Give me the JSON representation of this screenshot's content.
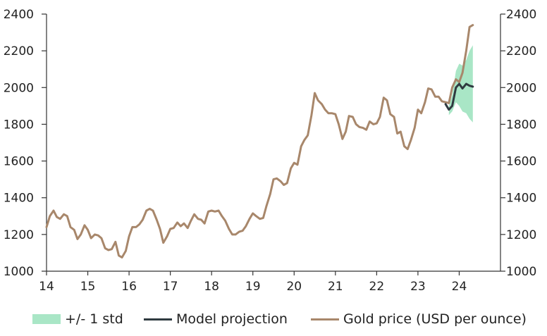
{
  "chart_data": {
    "type": "line",
    "title": "",
    "xlabel": "",
    "ylabel": "",
    "xlim": [
      14,
      25.0
    ],
    "ylim": [
      1000,
      2400
    ],
    "x_ticks": [
      14,
      15,
      16,
      17,
      18,
      19,
      20,
      21,
      22,
      23,
      24
    ],
    "x_tick_labels": [
      "14",
      "15",
      "16",
      "17",
      "18",
      "19",
      "20",
      "21",
      "22",
      "23",
      "24"
    ],
    "y_ticks": [
      1000,
      1200,
      1400,
      1600,
      1800,
      2000,
      2200,
      2400
    ],
    "y_tick_labels": [
      "1000",
      "1200",
      "1400",
      "1600",
      "1800",
      "2000",
      "2200",
      "2400"
    ],
    "secondary_y_tick_labels": [
      "1000",
      "1200",
      "1400",
      "1600",
      "1800",
      "2000",
      "2200",
      "2400"
    ],
    "colors": {
      "gold": "#a8876b",
      "model": "#2f3a40",
      "band": "#a9e6c6",
      "axis": "#333333"
    },
    "series": [
      {
        "name": "Gold price (USD per ounce)",
        "x": [
          14.0,
          14.08,
          14.17,
          14.25,
          14.33,
          14.42,
          14.5,
          14.58,
          14.67,
          14.75,
          14.83,
          14.92,
          15.0,
          15.08,
          15.17,
          15.25,
          15.33,
          15.42,
          15.5,
          15.58,
          15.67,
          15.75,
          15.83,
          15.92,
          16.0,
          16.08,
          16.17,
          16.25,
          16.33,
          16.42,
          16.5,
          16.58,
          16.67,
          16.75,
          16.83,
          16.92,
          17.0,
          17.08,
          17.17,
          17.25,
          17.33,
          17.42,
          17.5,
          17.58,
          17.67,
          17.75,
          17.83,
          17.92,
          18.0,
          18.08,
          18.17,
          18.25,
          18.33,
          18.42,
          18.5,
          18.58,
          18.67,
          18.75,
          18.83,
          18.92,
          19.0,
          19.08,
          19.17,
          19.25,
          19.33,
          19.42,
          19.5,
          19.58,
          19.67,
          19.75,
          19.83,
          19.92,
          20.0,
          20.08,
          20.17,
          20.25,
          20.33,
          20.42,
          20.5,
          20.58,
          20.67,
          20.75,
          20.83,
          20.92,
          21.0,
          21.08,
          21.17,
          21.25,
          21.33,
          21.42,
          21.5,
          21.58,
          21.67,
          21.75,
          21.83,
          21.92,
          22.0,
          22.08,
          22.17,
          22.25,
          22.33,
          22.42,
          22.5,
          22.58,
          22.67,
          22.75,
          22.83,
          22.92,
          23.0,
          23.08,
          23.17,
          23.25,
          23.33,
          23.42,
          23.5,
          23.58,
          23.67,
          23.75,
          23.83,
          23.92,
          24.0,
          24.08,
          24.17,
          24.25,
          24.33
        ],
        "values": [
          1240,
          1300,
          1330,
          1295,
          1285,
          1310,
          1300,
          1240,
          1225,
          1175,
          1200,
          1250,
          1225,
          1180,
          1200,
          1195,
          1180,
          1125,
          1115,
          1120,
          1160,
          1085,
          1075,
          1110,
          1190,
          1240,
          1240,
          1255,
          1280,
          1330,
          1340,
          1330,
          1280,
          1230,
          1155,
          1190,
          1230,
          1235,
          1265,
          1245,
          1260,
          1235,
          1275,
          1310,
          1285,
          1280,
          1260,
          1325,
          1330,
          1325,
          1330,
          1300,
          1275,
          1230,
          1200,
          1200,
          1215,
          1220,
          1245,
          1285,
          1315,
          1300,
          1285,
          1290,
          1355,
          1420,
          1500,
          1505,
          1490,
          1470,
          1480,
          1560,
          1590,
          1580,
          1680,
          1715,
          1740,
          1850,
          1970,
          1930,
          1910,
          1880,
          1860,
          1860,
          1855,
          1800,
          1720,
          1760,
          1845,
          1840,
          1800,
          1785,
          1780,
          1770,
          1815,
          1800,
          1805,
          1840,
          1945,
          1930,
          1855,
          1840,
          1750,
          1760,
          1680,
          1665,
          1715,
          1780,
          1880,
          1860,
          1920,
          1995,
          1990,
          1950,
          1950,
          1925,
          1920,
          1915,
          2000,
          2045,
          2030,
          2080,
          2200,
          2330,
          2340
        ]
      },
      {
        "name": "Model projection",
        "x": [
          23.67,
          23.75,
          23.83,
          23.92,
          24.0,
          24.08,
          24.17,
          24.25,
          24.33
        ],
        "values": [
          1910,
          1880,
          1900,
          2000,
          2020,
          1995,
          2020,
          2010,
          2005
        ]
      },
      {
        "name": "+/- 1 std",
        "type": "band",
        "x": [
          23.75,
          23.83,
          23.92,
          24.0,
          24.08,
          24.17,
          24.25,
          24.33
        ],
        "lower": [
          1850,
          1870,
          1920,
          1900,
          1870,
          1860,
          1830,
          1810
        ],
        "upper": [
          1900,
          1960,
          2090,
          2130,
          2120,
          2150,
          2200,
          2230
        ]
      }
    ],
    "legend": [
      "+/- 1 std",
      "Model projection",
      "Gold price (USD per ounce)"
    ],
    "legend_position": "bottom"
  }
}
